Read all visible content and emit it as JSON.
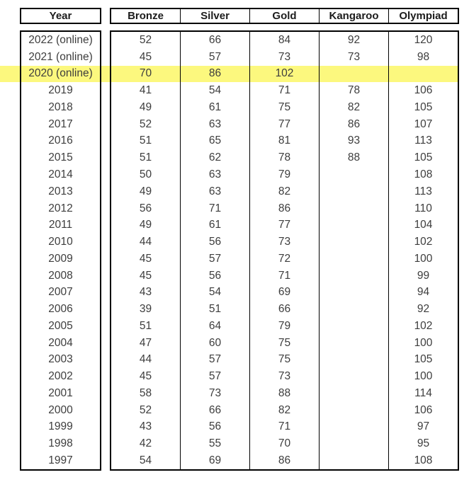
{
  "colors": {
    "highlight": "#FCF87E",
    "border": "#000000",
    "body_text": "#3D3D3D",
    "header_text": "#1C1C1C",
    "background": "#FFFFFF"
  },
  "chart_data": {
    "type": "table",
    "title": "",
    "columns": [
      "Year",
      "Bronze",
      "Silver",
      "Gold",
      "Kangaroo",
      "Olympiad"
    ],
    "highlighted_row_year": "2020 (online)",
    "rows": [
      {
        "year": "2022 (online)",
        "bronze": "52",
        "silver": "66",
        "gold": "84",
        "kangaroo": "92",
        "olympiad": "120",
        "highlighted": false
      },
      {
        "year": "2021 (online)",
        "bronze": "45",
        "silver": "57",
        "gold": "73",
        "kangaroo": "73",
        "olympiad": "98",
        "highlighted": false
      },
      {
        "year": "2020 (online)",
        "bronze": "70",
        "silver": "86",
        "gold": "102",
        "kangaroo": "",
        "olympiad": "",
        "highlighted": true
      },
      {
        "year": "2019",
        "bronze": "41",
        "silver": "54",
        "gold": "71",
        "kangaroo": "78",
        "olympiad": "106",
        "highlighted": false
      },
      {
        "year": "2018",
        "bronze": "49",
        "silver": "61",
        "gold": "75",
        "kangaroo": "82",
        "olympiad": "105",
        "highlighted": false
      },
      {
        "year": "2017",
        "bronze": "52",
        "silver": "63",
        "gold": "77",
        "kangaroo": "86",
        "olympiad": "107",
        "highlighted": false
      },
      {
        "year": "2016",
        "bronze": "51",
        "silver": "65",
        "gold": "81",
        "kangaroo": "93",
        "olympiad": "113",
        "highlighted": false
      },
      {
        "year": "2015",
        "bronze": "51",
        "silver": "62",
        "gold": "78",
        "kangaroo": "88",
        "olympiad": "105",
        "highlighted": false
      },
      {
        "year": "2014",
        "bronze": "50",
        "silver": "63",
        "gold": "79",
        "kangaroo": "",
        "olympiad": "108",
        "highlighted": false
      },
      {
        "year": "2013",
        "bronze": "49",
        "silver": "63",
        "gold": "82",
        "kangaroo": "",
        "olympiad": "113",
        "highlighted": false
      },
      {
        "year": "2012",
        "bronze": "56",
        "silver": "71",
        "gold": "86",
        "kangaroo": "",
        "olympiad": "110",
        "highlighted": false
      },
      {
        "year": "2011",
        "bronze": "49",
        "silver": "61",
        "gold": "77",
        "kangaroo": "",
        "olympiad": "104",
        "highlighted": false
      },
      {
        "year": "2010",
        "bronze": "44",
        "silver": "56",
        "gold": "73",
        "kangaroo": "",
        "olympiad": "102",
        "highlighted": false
      },
      {
        "year": "2009",
        "bronze": "45",
        "silver": "57",
        "gold": "72",
        "kangaroo": "",
        "olympiad": "100",
        "highlighted": false
      },
      {
        "year": "2008",
        "bronze": "45",
        "silver": "56",
        "gold": "71",
        "kangaroo": "",
        "olympiad": "99",
        "highlighted": false
      },
      {
        "year": "2007",
        "bronze": "43",
        "silver": "54",
        "gold": "69",
        "kangaroo": "",
        "olympiad": "94",
        "highlighted": false
      },
      {
        "year": "2006",
        "bronze": "39",
        "silver": "51",
        "gold": "66",
        "kangaroo": "",
        "olympiad": "92",
        "highlighted": false
      },
      {
        "year": "2005",
        "bronze": "51",
        "silver": "64",
        "gold": "79",
        "kangaroo": "",
        "olympiad": "102",
        "highlighted": false
      },
      {
        "year": "2004",
        "bronze": "47",
        "silver": "60",
        "gold": "75",
        "kangaroo": "",
        "olympiad": "100",
        "highlighted": false
      },
      {
        "year": "2003",
        "bronze": "44",
        "silver": "57",
        "gold": "75",
        "kangaroo": "",
        "olympiad": "105",
        "highlighted": false
      },
      {
        "year": "2002",
        "bronze": "45",
        "silver": "57",
        "gold": "73",
        "kangaroo": "",
        "olympiad": "100",
        "highlighted": false
      },
      {
        "year": "2001",
        "bronze": "58",
        "silver": "73",
        "gold": "88",
        "kangaroo": "",
        "olympiad": "114",
        "highlighted": false
      },
      {
        "year": "2000",
        "bronze": "52",
        "silver": "66",
        "gold": "82",
        "kangaroo": "",
        "olympiad": "106",
        "highlighted": false
      },
      {
        "year": "1999",
        "bronze": "43",
        "silver": "56",
        "gold": "71",
        "kangaroo": "",
        "olympiad": "97",
        "highlighted": false
      },
      {
        "year": "1998",
        "bronze": "42",
        "silver": "55",
        "gold": "70",
        "kangaroo": "",
        "olympiad": "95",
        "highlighted": false
      },
      {
        "year": "1997",
        "bronze": "54",
        "silver": "69",
        "gold": "86",
        "kangaroo": "",
        "olympiad": "108",
        "highlighted": false
      }
    ]
  }
}
